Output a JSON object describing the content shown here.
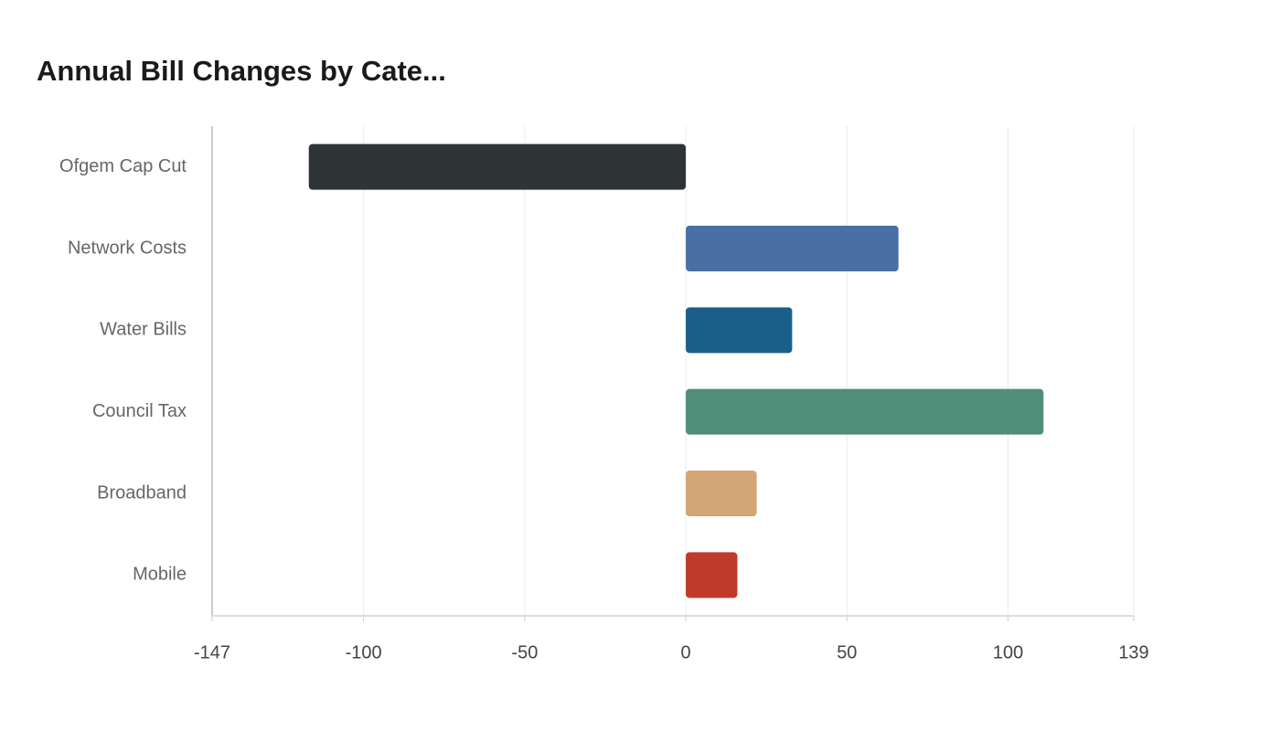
{
  "chart_data": {
    "type": "bar",
    "orientation": "horizontal",
    "title": "Annual Bill Changes by Cate...",
    "categories": [
      "Ofgem Cap Cut",
      "Network Costs",
      "Water Bills",
      "Council Tax",
      "Broadband",
      "Mobile"
    ],
    "values": [
      -117,
      66,
      33,
      111,
      22,
      16
    ],
    "colors": [
      "#2e3436",
      "#4a6fa5",
      "#1a5f8a",
      "#4f8f7a",
      "#d4a574",
      "#c0392b"
    ],
    "xlim": [
      -147,
      139
    ],
    "xticks": [
      -147,
      -100,
      -50,
      0,
      50,
      100,
      139
    ],
    "grid": true
  }
}
